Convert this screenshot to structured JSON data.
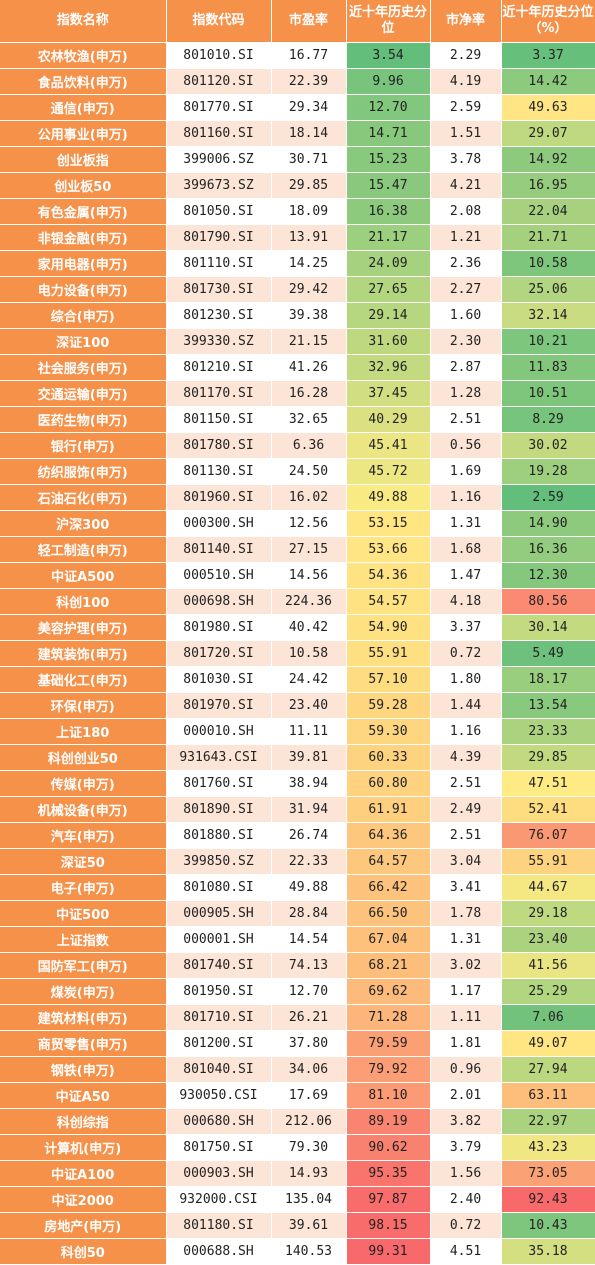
{
  "columns": [
    "指数名称",
    "指数代码",
    "市盈率",
    "近十年历史分位",
    "市净率",
    "近十年历史分位（%）"
  ],
  "rows": [
    {
      "name": "农林牧渔(申万)",
      "code": "801010.SI",
      "pe": "16.77",
      "pe_pct": "3.54",
      "pb": "2.29",
      "pb_pct": "3.37"
    },
    {
      "name": "食品饮料(申万)",
      "code": "801120.SI",
      "pe": "22.39",
      "pe_pct": "9.96",
      "pb": "4.19",
      "pb_pct": "14.42"
    },
    {
      "name": "通信(申万)",
      "code": "801770.SI",
      "pe": "29.34",
      "pe_pct": "12.70",
      "pb": "2.59",
      "pb_pct": "49.63"
    },
    {
      "name": "公用事业(申万)",
      "code": "801160.SI",
      "pe": "18.14",
      "pe_pct": "14.71",
      "pb": "1.51",
      "pb_pct": "29.07"
    },
    {
      "name": "创业板指",
      "code": "399006.SZ",
      "pe": "30.71",
      "pe_pct": "15.23",
      "pb": "3.78",
      "pb_pct": "14.92"
    },
    {
      "name": "创业板50",
      "code": "399673.SZ",
      "pe": "29.85",
      "pe_pct": "15.47",
      "pb": "4.21",
      "pb_pct": "16.95"
    },
    {
      "name": "有色金属(申万)",
      "code": "801050.SI",
      "pe": "18.09",
      "pe_pct": "16.38",
      "pb": "2.08",
      "pb_pct": "22.04"
    },
    {
      "name": "非银金融(申万)",
      "code": "801790.SI",
      "pe": "13.91",
      "pe_pct": "21.17",
      "pb": "1.21",
      "pb_pct": "21.71"
    },
    {
      "name": "家用电器(申万)",
      "code": "801110.SI",
      "pe": "14.25",
      "pe_pct": "24.09",
      "pb": "2.36",
      "pb_pct": "10.58"
    },
    {
      "name": "电力设备(申万)",
      "code": "801730.SI",
      "pe": "29.42",
      "pe_pct": "27.65",
      "pb": "2.27",
      "pb_pct": "25.06"
    },
    {
      "name": "综合(申万)",
      "code": "801230.SI",
      "pe": "39.38",
      "pe_pct": "29.14",
      "pb": "1.60",
      "pb_pct": "32.14"
    },
    {
      "name": "深证100",
      "code": "399330.SZ",
      "pe": "21.15",
      "pe_pct": "31.60",
      "pb": "2.30",
      "pb_pct": "10.21"
    },
    {
      "name": "社会服务(申万)",
      "code": "801210.SI",
      "pe": "41.26",
      "pe_pct": "32.96",
      "pb": "2.87",
      "pb_pct": "11.83"
    },
    {
      "name": "交通运输(申万)",
      "code": "801170.SI",
      "pe": "16.28",
      "pe_pct": "37.45",
      "pb": "1.28",
      "pb_pct": "10.51"
    },
    {
      "name": "医药生物(申万)",
      "code": "801150.SI",
      "pe": "32.65",
      "pe_pct": "40.29",
      "pb": "2.51",
      "pb_pct": "8.29"
    },
    {
      "name": "银行(申万)",
      "code": "801780.SI",
      "pe": "6.36",
      "pe_pct": "45.41",
      "pb": "0.56",
      "pb_pct": "30.02"
    },
    {
      "name": "纺织服饰(申万)",
      "code": "801130.SI",
      "pe": "24.50",
      "pe_pct": "45.72",
      "pb": "1.69",
      "pb_pct": "19.28"
    },
    {
      "name": "石油石化(申万)",
      "code": "801960.SI",
      "pe": "16.02",
      "pe_pct": "49.88",
      "pb": "1.16",
      "pb_pct": "2.59"
    },
    {
      "name": "沪深300",
      "code": "000300.SH",
      "pe": "12.56",
      "pe_pct": "53.15",
      "pb": "1.31",
      "pb_pct": "14.90"
    },
    {
      "name": "轻工制造(申万)",
      "code": "801140.SI",
      "pe": "27.15",
      "pe_pct": "53.66",
      "pb": "1.68",
      "pb_pct": "16.36"
    },
    {
      "name": "中证A500",
      "code": "000510.SH",
      "pe": "14.56",
      "pe_pct": "54.36",
      "pb": "1.47",
      "pb_pct": "12.30"
    },
    {
      "name": "科创100",
      "code": "000698.SH",
      "pe": "224.36",
      "pe_pct": "54.57",
      "pb": "4.18",
      "pb_pct": "80.56"
    },
    {
      "name": "美容护理(申万)",
      "code": "801980.SI",
      "pe": "40.42",
      "pe_pct": "54.90",
      "pb": "3.37",
      "pb_pct": "30.14"
    },
    {
      "name": "建筑装饰(申万)",
      "code": "801720.SI",
      "pe": "10.58",
      "pe_pct": "55.91",
      "pb": "0.72",
      "pb_pct": "5.49"
    },
    {
      "name": "基础化工(申万)",
      "code": "801030.SI",
      "pe": "24.42",
      "pe_pct": "57.10",
      "pb": "1.80",
      "pb_pct": "18.17"
    },
    {
      "name": "环保(申万)",
      "code": "801970.SI",
      "pe": "23.40",
      "pe_pct": "59.28",
      "pb": "1.44",
      "pb_pct": "13.54"
    },
    {
      "name": "上证180",
      "code": "000010.SH",
      "pe": "11.11",
      "pe_pct": "59.30",
      "pb": "1.16",
      "pb_pct": "23.33"
    },
    {
      "name": "科创创业50",
      "code": "931643.CSI",
      "pe": "39.81",
      "pe_pct": "60.33",
      "pb": "4.39",
      "pb_pct": "29.85"
    },
    {
      "name": "传媒(申万)",
      "code": "801760.SI",
      "pe": "38.94",
      "pe_pct": "60.80",
      "pb": "2.51",
      "pb_pct": "47.51"
    },
    {
      "name": "机械设备(申万)",
      "code": "801890.SI",
      "pe": "31.94",
      "pe_pct": "61.91",
      "pb": "2.49",
      "pb_pct": "52.41"
    },
    {
      "name": "汽车(申万)",
      "code": "801880.SI",
      "pe": "26.74",
      "pe_pct": "64.36",
      "pb": "2.51",
      "pb_pct": "76.07"
    },
    {
      "name": "深证50",
      "code": "399850.SZ",
      "pe": "22.33",
      "pe_pct": "64.57",
      "pb": "3.04",
      "pb_pct": "55.91"
    },
    {
      "name": "电子(申万)",
      "code": "801080.SI",
      "pe": "49.88",
      "pe_pct": "66.42",
      "pb": "3.41",
      "pb_pct": "44.67"
    },
    {
      "name": "中证500",
      "code": "000905.SH",
      "pe": "28.84",
      "pe_pct": "66.50",
      "pb": "1.78",
      "pb_pct": "29.18"
    },
    {
      "name": "上证指数",
      "code": "000001.SH",
      "pe": "14.54",
      "pe_pct": "67.04",
      "pb": "1.31",
      "pb_pct": "23.40"
    },
    {
      "name": "国防军工(申万)",
      "code": "801740.SI",
      "pe": "74.13",
      "pe_pct": "68.21",
      "pb": "3.02",
      "pb_pct": "41.56"
    },
    {
      "name": "煤炭(申万)",
      "code": "801950.SI",
      "pe": "12.70",
      "pe_pct": "69.62",
      "pb": "1.17",
      "pb_pct": "25.29"
    },
    {
      "name": "建筑材料(申万)",
      "code": "801710.SI",
      "pe": "26.21",
      "pe_pct": "71.28",
      "pb": "1.11",
      "pb_pct": "7.06"
    },
    {
      "name": "商贸零售(申万)",
      "code": "801200.SI",
      "pe": "37.80",
      "pe_pct": "79.59",
      "pb": "1.81",
      "pb_pct": "49.07"
    },
    {
      "name": "钢铁(申万)",
      "code": "801040.SI",
      "pe": "34.06",
      "pe_pct": "79.92",
      "pb": "0.96",
      "pb_pct": "27.94"
    },
    {
      "name": "中证A50",
      "code": "930050.CSI",
      "pe": "17.69",
      "pe_pct": "81.10",
      "pb": "2.01",
      "pb_pct": "63.11"
    },
    {
      "name": "科创综指",
      "code": "000680.SH",
      "pe": "212.06",
      "pe_pct": "89.19",
      "pb": "3.82",
      "pb_pct": "22.97"
    },
    {
      "name": "计算机(申万)",
      "code": "801750.SI",
      "pe": "79.30",
      "pe_pct": "90.62",
      "pb": "3.79",
      "pb_pct": "43.23"
    },
    {
      "name": "中证A100",
      "code": "000903.SH",
      "pe": "14.93",
      "pe_pct": "95.35",
      "pb": "1.56",
      "pb_pct": "73.05"
    },
    {
      "name": "中证2000",
      "code": "932000.CSI",
      "pe": "135.04",
      "pe_pct": "97.87",
      "pb": "2.40",
      "pb_pct": "92.43"
    },
    {
      "name": "房地产(申万)",
      "code": "801180.SI",
      "pe": "39.61",
      "pe_pct": "98.15",
      "pb": "0.72",
      "pb_pct": "10.43"
    },
    {
      "name": "科创50",
      "code": "000688.SH",
      "pe": "140.53",
      "pe_pct": "99.31",
      "pb": "4.51",
      "pb_pct": "35.18"
    }
  ],
  "colors": {
    "header_bg": "#F6914A",
    "row_stripe": "#FCE4D6",
    "scale_low": "#63BE7B",
    "scale_mid": "#FFEB84",
    "scale_high": "#F8696B"
  }
}
